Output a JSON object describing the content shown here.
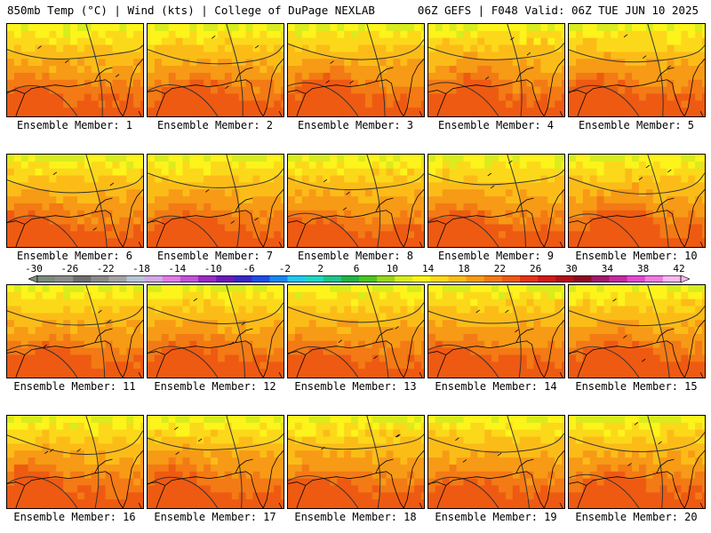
{
  "header": {
    "left": "850mb Temp (°C) | Wind (kts) | College of DuPage NEXLAB",
    "right": "06Z GEFS | F048 Valid: 06Z TUE JUN 10 2025"
  },
  "legend": {
    "ticks": [
      "-30",
      "-26",
      "-22",
      "-18",
      "-14",
      "-10",
      "-6",
      "-2",
      "2",
      "6",
      "10",
      "14",
      "18",
      "22",
      "26",
      "30",
      "34",
      "38",
      "42"
    ],
    "colors": [
      "#7b8b7b",
      "#8c8c8c",
      "#6e6e6e",
      "#8a8a8a",
      "#a3a3a3",
      "#b7c4d6",
      "#d3a8e6",
      "#e07be6",
      "#c252d8",
      "#9a2ac4",
      "#6a1ab8",
      "#3a28c6",
      "#1d4ee8",
      "#1a86f0",
      "#24c6f0",
      "#20d6c0",
      "#1fc48a",
      "#21b446",
      "#4cc41f",
      "#9ad61c",
      "#d8ec1e",
      "#fcf41a",
      "#fcd81a",
      "#fcbc18",
      "#f79a16",
      "#f37a14",
      "#ee5a12",
      "#e5341a",
      "#d11a1a",
      "#b0101a",
      "#8c0c24",
      "#a01a6a",
      "#c42aa0",
      "#e04ad0",
      "#f07ae0",
      "#f8b8ee"
    ]
  },
  "members": [
    {
      "label": "Ensemble Member: 1"
    },
    {
      "label": "Ensemble Member: 2"
    },
    {
      "label": "Ensemble Member: 3"
    },
    {
      "label": "Ensemble Member: 4"
    },
    {
      "label": "Ensemble Member: 5"
    },
    {
      "label": "Ensemble Member: 6"
    },
    {
      "label": "Ensemble Member: 7"
    },
    {
      "label": "Ensemble Member: 8"
    },
    {
      "label": "Ensemble Member: 9"
    },
    {
      "label": "Ensemble Member: 10"
    },
    {
      "label": "Ensemble Member: 11"
    },
    {
      "label": "Ensemble Member: 12"
    },
    {
      "label": "Ensemble Member: 13"
    },
    {
      "label": "Ensemble Member: 14"
    },
    {
      "label": "Ensemble Member: 15"
    },
    {
      "label": "Ensemble Member: 16"
    },
    {
      "label": "Ensemble Member: 17"
    },
    {
      "label": "Ensemble Member: 18"
    },
    {
      "label": "Ensemble Member: 19"
    },
    {
      "label": "Ensemble Member: 20"
    }
  ]
}
